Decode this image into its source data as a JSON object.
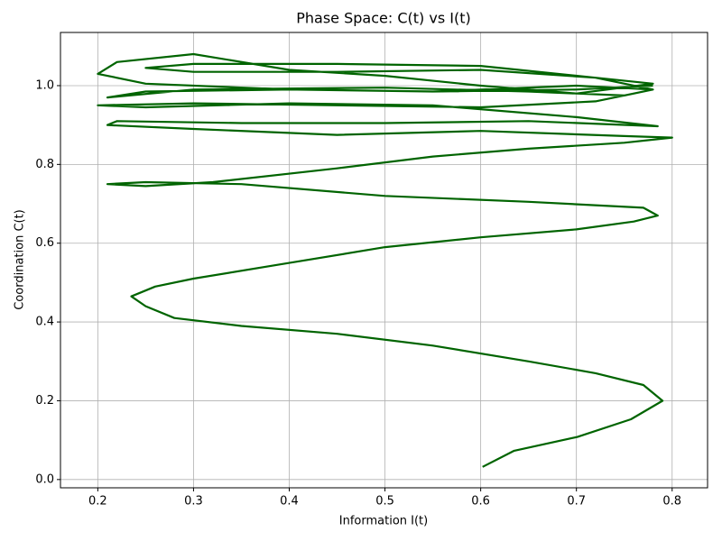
{
  "chart_data": {
    "type": "line",
    "title": "Phase Space: C(t) vs I(t)",
    "x_label": "Information I(t)",
    "y_label": "Coordination C(t)",
    "color": "#006400",
    "grid": true,
    "xlim": [
      0.161,
      0.837
    ],
    "ylim": [
      -0.021,
      1.135
    ],
    "xticks": [
      0.2,
      0.3,
      0.4,
      0.5,
      0.6,
      0.7,
      0.8
    ],
    "yticks": [
      {
        "value": 0,
        "label": "0.0"
      },
      0.2,
      0.4,
      0.6,
      0.8,
      {
        "value": 1,
        "label": "1.0"
      }
    ],
    "x": [
      0.602,
      0.635,
      0.701,
      0.757,
      0.79,
      0.77,
      0.72,
      0.65,
      0.55,
      0.45,
      0.35,
      0.28,
      0.25,
      0.235,
      0.26,
      0.3,
      0.4,
      0.5,
      0.6,
      0.7,
      0.76,
      0.785,
      0.77,
      0.65,
      0.5,
      0.35,
      0.25,
      0.21,
      0.25,
      0.32,
      0.45,
      0.55,
      0.65,
      0.75,
      0.8,
      0.75,
      0.6,
      0.45,
      0.3,
      0.21,
      0.22,
      0.35,
      0.5,
      0.65,
      0.785,
      0.7,
      0.55,
      0.4,
      0.25,
      0.2,
      0.3,
      0.45,
      0.6,
      0.72,
      0.78,
      0.7,
      0.55,
      0.4,
      0.25,
      0.21,
      0.3,
      0.5,
      0.65,
      0.75,
      0.78,
      0.72,
      0.6,
      0.45,
      0.3,
      0.25,
      0.3,
      0.45,
      0.6,
      0.72,
      0.78,
      0.7,
      0.6,
      0.5,
      0.4,
      0.3,
      0.22,
      0.2,
      0.25,
      0.4,
      0.55,
      0.7,
      0.78
    ],
    "values": [
      0.032,
      0.073,
      0.108,
      0.153,
      0.2,
      0.24,
      0.27,
      0.3,
      0.34,
      0.37,
      0.39,
      0.41,
      0.44,
      0.465,
      0.49,
      0.51,
      0.55,
      0.59,
      0.615,
      0.635,
      0.655,
      0.67,
      0.69,
      0.705,
      0.72,
      0.75,
      0.755,
      0.75,
      0.745,
      0.755,
      0.79,
      0.82,
      0.84,
      0.855,
      0.868,
      0.872,
      0.885,
      0.875,
      0.89,
      0.9,
      0.91,
      0.905,
      0.905,
      0.91,
      0.897,
      0.92,
      0.95,
      0.955,
      0.945,
      0.95,
      0.955,
      0.95,
      0.945,
      0.96,
      0.99,
      1.0,
      0.985,
      0.99,
      0.985,
      0.97,
      0.99,
      0.995,
      0.985,
      0.975,
      0.99,
      1.02,
      1.05,
      1.055,
      1.055,
      1.045,
      1.035,
      1.035,
      1.04,
      1.02,
      1.005,
      0.98,
      1.0,
      1.025,
      1.04,
      1.08,
      1.06,
      1.03,
      1.005,
      0.99,
      0.985,
      0.99,
      1.0
    ]
  }
}
